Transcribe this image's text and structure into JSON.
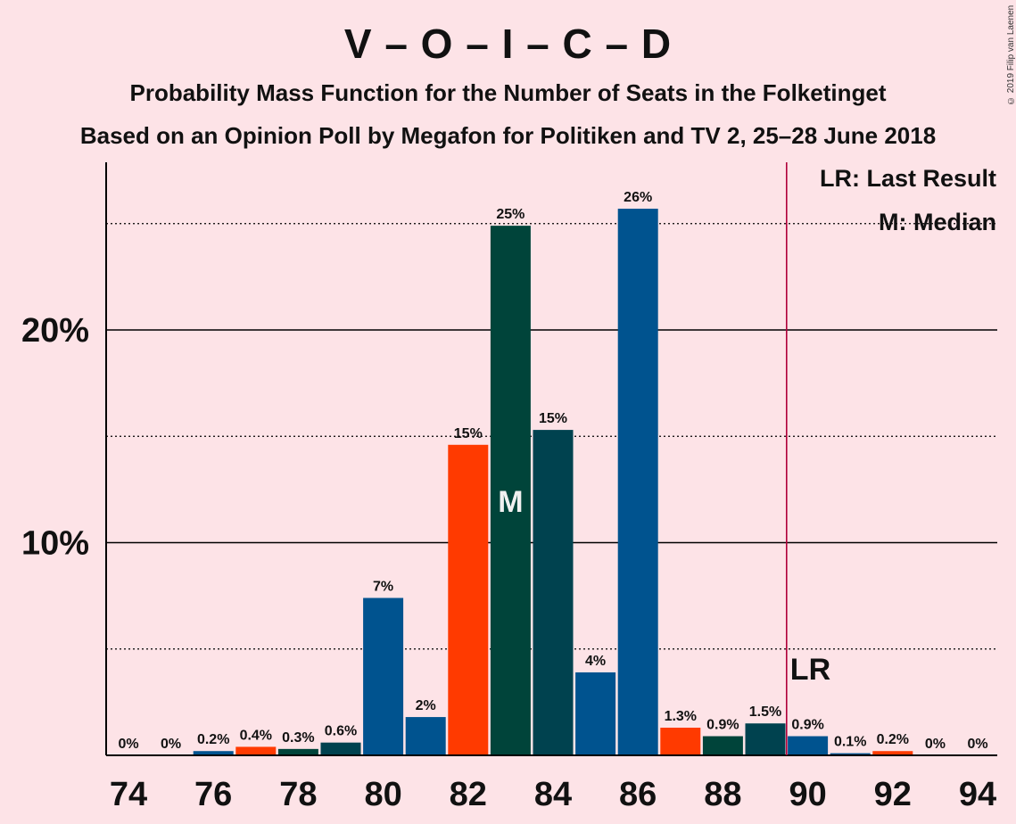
{
  "title": "V – O – I – C – D",
  "subtitle1": "Probability Mass Function for the Number of Seats in the Folketinget",
  "subtitle2": "Based on an Opinion Poll by Megafon for Politiken and TV 2, 25–28 June 2018",
  "copyright": "© 2019 Filip van Laenen",
  "legend": {
    "last_result": "LR: Last Result",
    "median": "M: Median"
  },
  "colors": {
    "background": "#fde3e7",
    "blue": "#00538f",
    "orange": "#ff3a00",
    "green": "#00443a",
    "teal": "#00424f",
    "lr_line": "#b0003a"
  },
  "chart_data": {
    "type": "bar",
    "x": [
      74,
      75,
      76,
      77,
      78,
      79,
      80,
      81,
      82,
      83,
      84,
      85,
      86,
      87,
      88,
      89,
      90,
      91,
      92,
      93,
      94
    ],
    "values": [
      0,
      0,
      0.2,
      0.4,
      0.3,
      0.6,
      7.4,
      1.8,
      14.6,
      24.9,
      15.3,
      3.9,
      25.7,
      1.3,
      0.9,
      1.5,
      0.9,
      0.1,
      0.2,
      0,
      0
    ],
    "data_labels": [
      "0%",
      "0%",
      "0.2%",
      "0.4%",
      "0.3%",
      "0.6%",
      "7%",
      "2%",
      "15%",
      "25%",
      "15%",
      "4%",
      "26%",
      "1.3%",
      "0.9%",
      "1.5%",
      "0.9%",
      "0.1%",
      "0.2%",
      "0%",
      "0%"
    ],
    "bar_colors": [
      "#00538f",
      "#ff3a00",
      "#00538f",
      "#ff3a00",
      "#00443a",
      "#00424f",
      "#00538f",
      "#00538f",
      "#ff3a00",
      "#00443a",
      "#00424f",
      "#00538f",
      "#00538f",
      "#ff3a00",
      "#00443a",
      "#00424f",
      "#00538f",
      "#00538f",
      "#ff3a00",
      "#00443a",
      "#00424f"
    ],
    "x_tick_labels": [
      "74",
      "76",
      "78",
      "80",
      "82",
      "84",
      "86",
      "88",
      "90",
      "92",
      "94"
    ],
    "x_ticks": [
      74,
      76,
      78,
      80,
      82,
      84,
      86,
      88,
      90,
      92,
      94
    ],
    "y_tick_labels": [
      "10%",
      "20%"
    ],
    "y_ticks": [
      10,
      20
    ],
    "y_minor_gridlines": [
      5,
      15,
      25
    ],
    "ylim": [
      0,
      28
    ],
    "median": 83,
    "median_label": "M",
    "last_result": 89.5,
    "last_result_label": "LR",
    "legend_position": "top-right"
  }
}
